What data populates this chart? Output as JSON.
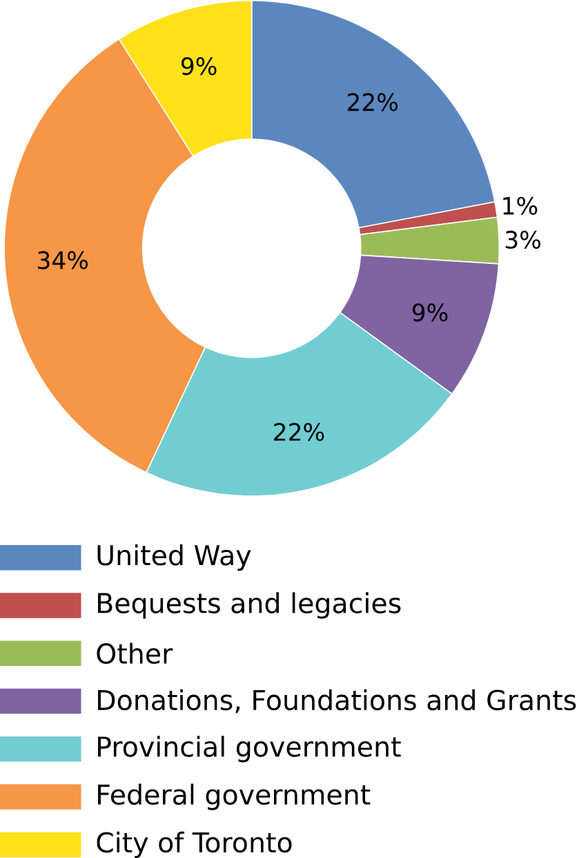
{
  "chart_data": {
    "type": "donut",
    "categories": [
      "United Way",
      "Bequests and legacies",
      "Other",
      "Donations, Foundations and Grants",
      "Provincial government",
      "Federal government",
      "City of Toronto"
    ],
    "values": [
      22,
      1,
      3,
      9,
      22,
      34,
      9
    ],
    "value_labels": [
      "22%",
      "1%",
      "3%",
      "9%",
      "22%",
      "34%",
      "9%"
    ],
    "colors": [
      "#5b87bf",
      "#c0504d",
      "#9bbb59",
      "#8064a2",
      "#72cdd3",
      "#f79646",
      "#ffe11a"
    ],
    "legend": "bottom"
  }
}
